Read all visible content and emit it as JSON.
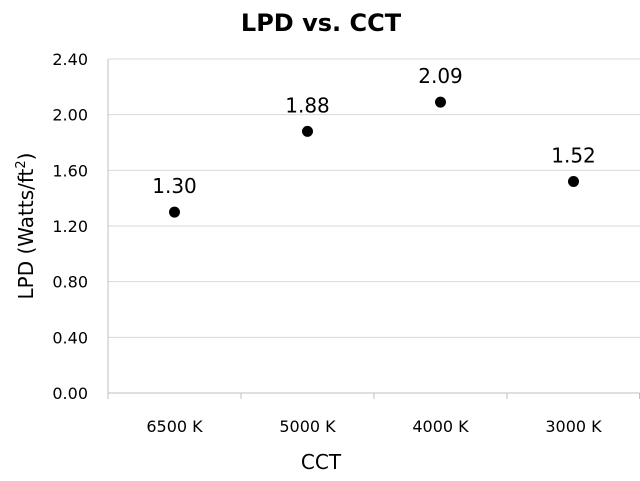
{
  "chart_data": {
    "type": "scatter",
    "title": "LPD vs. CCT",
    "xlabel": "CCT",
    "ylabel": {
      "text": "LPD (Watts/ft",
      "superscript": "2",
      "suffix": ")"
    },
    "categories": [
      "6500 K",
      "5000 K",
      "4000 K",
      "3000 K"
    ],
    "values": [
      1.3,
      1.88,
      2.09,
      1.52
    ],
    "data_labels": [
      "1.30",
      "1.88",
      "2.09",
      "1.52"
    ],
    "ylim": [
      0,
      2.4
    ],
    "yticks": [
      "0.00",
      "0.40",
      "0.80",
      "1.20",
      "1.60",
      "2.00",
      "2.40"
    ],
    "grid": true,
    "legend": "none",
    "colors": {
      "point": "#000000",
      "grid": "#d9d9d9",
      "axis": "#bfbfbf"
    }
  }
}
